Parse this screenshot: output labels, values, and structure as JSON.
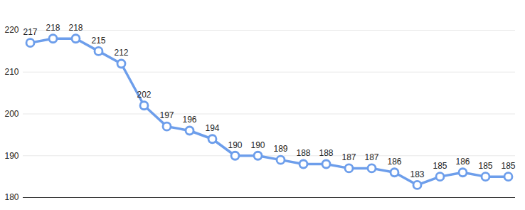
{
  "chart_data": {
    "type": "line",
    "categories": [
      null,
      null,
      null,
      null,
      null,
      null,
      null,
      null,
      null,
      null,
      null,
      null,
      null,
      null,
      null,
      null,
      null,
      null,
      null,
      null,
      null,
      null
    ],
    "values": [
      217,
      218,
      218,
      215,
      212,
      202,
      197,
      196,
      194,
      190,
      190,
      189,
      188,
      188,
      187,
      187,
      186,
      183,
      185,
      186,
      185,
      185
    ],
    "color": "#6d9eeb",
    "marker": "circle",
    "ylim": [
      180,
      220
    ],
    "yticks": [
      180,
      190,
      200,
      210,
      220
    ],
    "grid": true,
    "data_labels": true,
    "tick_labels": "y"
  }
}
